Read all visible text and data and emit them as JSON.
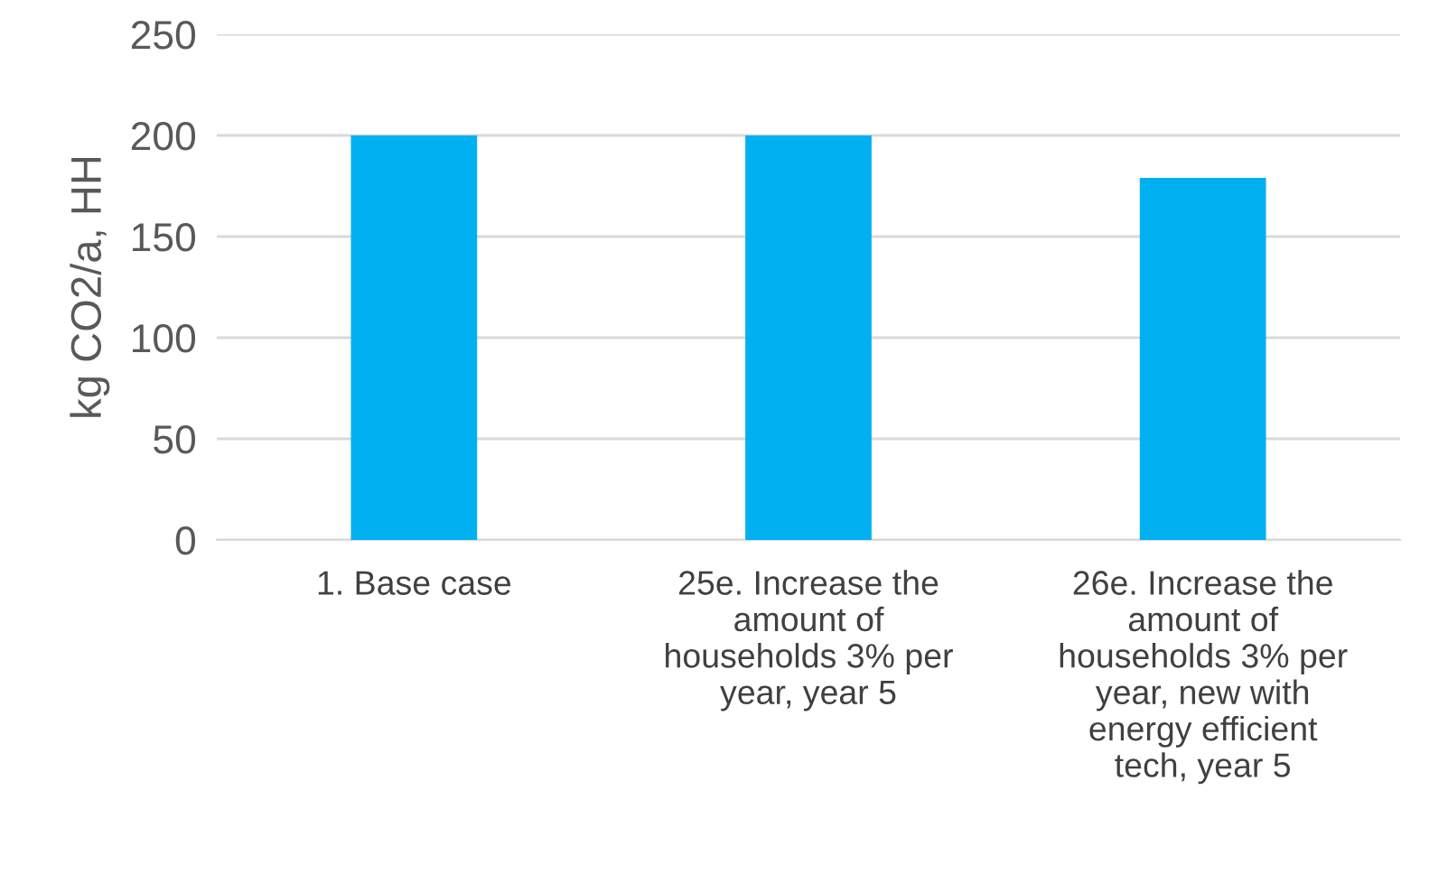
{
  "chart_data": {
    "type": "bar",
    "ylabel": "kg CO2/a, HH",
    "categories": [
      "1. Base case",
      "25e. Increase the\namount of\nhouseholds 3% per\nyear, year 5",
      "26e. Increase the\namount of\nhouseholds 3% per\nyear, new with\nenergy efficient\ntech, year 5"
    ],
    "values": [
      200,
      200,
      179
    ],
    "color": "#00b0f0",
    "ylim": [
      0,
      250
    ],
    "yticks": [
      0,
      50,
      100,
      150,
      200,
      250
    ],
    "grid": "y"
  }
}
